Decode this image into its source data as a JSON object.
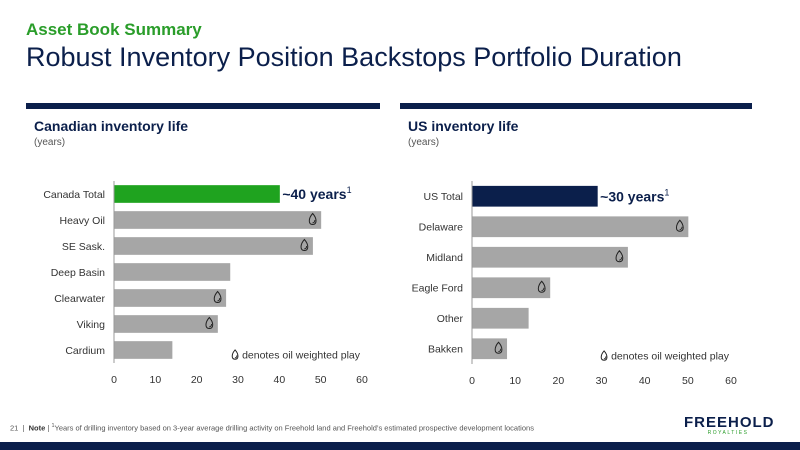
{
  "header": {
    "eyebrow": "Asset Book Summary",
    "title": "Robust Inventory Position Backstops Portfolio Duration"
  },
  "colors": {
    "navy": "#0b1f4b",
    "green": "#1fa31f",
    "gray_bar": "#a6a6a6",
    "axis": "#999999"
  },
  "icons": {
    "oil_drop": "oil-drop-icon"
  },
  "chart_data": [
    {
      "type": "bar",
      "orientation": "horizontal",
      "title": "Canadian inventory life",
      "subtitle": "(years)",
      "categories": [
        "Canada Total",
        "Heavy Oil",
        "SE Sask.",
        "Deep Basin",
        "Clearwater",
        "Viking",
        "Cardium"
      ],
      "values": [
        40,
        50,
        48,
        28,
        27,
        25,
        14
      ],
      "oil_weighted": [
        false,
        true,
        true,
        false,
        true,
        true,
        false
      ],
      "highlight_index": 0,
      "highlight_color": "#1fa31f",
      "callout": "~40 years",
      "callout_sup": "1",
      "xlim": [
        0,
        60
      ],
      "xticks": [
        0,
        10,
        20,
        30,
        40,
        50,
        60
      ],
      "legend": "denotes oil weighted play",
      "legend_position": "bottom-right"
    },
    {
      "type": "bar",
      "orientation": "horizontal",
      "title": "US inventory life",
      "subtitle": "(years)",
      "categories": [
        "US Total",
        "Delaware",
        "Midland",
        "Eagle Ford",
        "Other",
        "Bakken"
      ],
      "values": [
        29,
        50,
        36,
        18,
        13,
        8
      ],
      "oil_weighted": [
        false,
        true,
        true,
        true,
        false,
        true
      ],
      "highlight_index": 0,
      "highlight_color": "#0b1f4b",
      "callout": "~30 years",
      "callout_sup": "1",
      "xlim": [
        0,
        60
      ],
      "xticks": [
        0,
        10,
        20,
        30,
        40,
        50,
        60
      ],
      "legend": "denotes oil weighted play",
      "legend_position": "bottom-right"
    }
  ],
  "footnote": {
    "page": "21",
    "label": "Note",
    "sup": "1",
    "text": "Years of drilling inventory based on 3-year average drilling activity on Freehold land and Freehold’s estimated prospective development locations"
  },
  "logo": {
    "main": "FREEHOLD",
    "sub": "ROYALTIES"
  }
}
